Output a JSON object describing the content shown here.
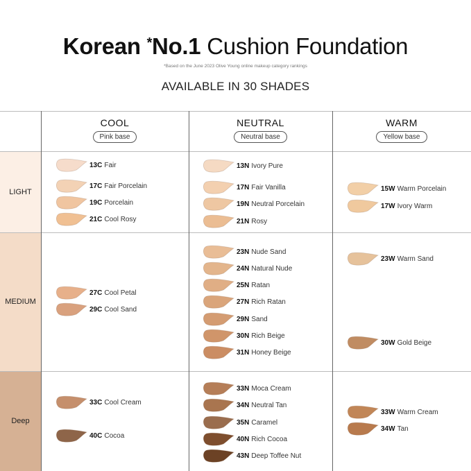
{
  "header": {
    "title_bold": "Korean",
    "title_star": "*",
    "title_no1": "No.1",
    "title_rest": "Cushion Foundation",
    "footnote": "*Based on the June 2023 Olive Young online makeup category rankings",
    "subtitle": "AVAILABLE IN 30 SHADES"
  },
  "columns": [
    {
      "name": "COOL",
      "base": "Pink base"
    },
    {
      "name": "NEUTRAL",
      "base": "Neutral base"
    },
    {
      "name": "WARM",
      "base": "Yellow base"
    }
  ],
  "rows": [
    {
      "name": "LIGHT",
      "bg": "#fcefe5"
    },
    {
      "name": "MEDIUM",
      "bg": "#f4dcc8"
    },
    {
      "name": "Deep",
      "bg": "#d6b194"
    }
  ],
  "shades": [
    {
      "code": "13C",
      "name": "Fair",
      "color": "#f6dccb",
      "col": 0,
      "row": 0
    },
    {
      "code": "17C",
      "name": "Fair Porcelain",
      "color": "#f3d2b5",
      "col": 0,
      "row": 0
    },
    {
      "code": "19C",
      "name": "Porcelain",
      "color": "#f0c5a0",
      "col": 0,
      "row": 0
    },
    {
      "code": "21C",
      "name": "Cool Rosy",
      "color": "#f0c093",
      "col": 0,
      "row": 0
    },
    {
      "code": "27C",
      "name": "Cool Petal",
      "color": "#e7b08a",
      "col": 0,
      "row": 1
    },
    {
      "code": "29C",
      "name": "Cool Sand",
      "color": "#d9a17e",
      "col": 0,
      "row": 1
    },
    {
      "code": "33C",
      "name": "Cool Cream",
      "color": "#c58f6c",
      "col": 0,
      "row": 2
    },
    {
      "code": "40C",
      "name": "Cocoa",
      "color": "#8e6549",
      "col": 0,
      "row": 2
    },
    {
      "code": "13N",
      "name": "Ivory Pure",
      "color": "#f5dac3",
      "col": 1,
      "row": 0
    },
    {
      "code": "17N",
      "name": "Fair Vanilla",
      "color": "#f3d0b0",
      "col": 1,
      "row": 0
    },
    {
      "code": "19N",
      "name": "Neutral Porcelain",
      "color": "#eec7a2",
      "col": 1,
      "row": 0
    },
    {
      "code": "21N",
      "name": "Rosy",
      "color": "#ebbd93",
      "col": 1,
      "row": 0
    },
    {
      "code": "23N",
      "name": "Nude Sand",
      "color": "#e9bd96",
      "col": 1,
      "row": 1
    },
    {
      "code": "24N",
      "name": "Natural Nude",
      "color": "#e3b58c",
      "col": 1,
      "row": 1
    },
    {
      "code": "25N",
      "name": "Ratan",
      "color": "#e0ae85",
      "col": 1,
      "row": 1
    },
    {
      "code": "27N",
      "name": "Rich Ratan",
      "color": "#daa57b",
      "col": 1,
      "row": 1
    },
    {
      "code": "29N",
      "name": "Sand",
      "color": "#d49c72",
      "col": 1,
      "row": 1
    },
    {
      "code": "30N",
      "name": "Rich Beige",
      "color": "#d0956a",
      "col": 1,
      "row": 1
    },
    {
      "code": "31N",
      "name": "Honey Beige",
      "color": "#cb8d63",
      "col": 1,
      "row": 1
    },
    {
      "code": "33N",
      "name": "Moca Cream",
      "color": "#b57e58",
      "col": 1,
      "row": 2
    },
    {
      "code": "34N",
      "name": "Neutral Tan",
      "color": "#a9754f",
      "col": 1,
      "row": 2
    },
    {
      "code": "35N",
      "name": "Caramel",
      "color": "#9a6d4e",
      "col": 1,
      "row": 2
    },
    {
      "code": "40N",
      "name": "Rich Cocoa",
      "color": "#7e4e2e",
      "col": 1,
      "row": 2
    },
    {
      "code": "43N",
      "name": "Deep Toffee Nut",
      "color": "#6c4225",
      "col": 1,
      "row": 2
    },
    {
      "code": "15W",
      "name": "Warm Porcelain",
      "color": "#f2cfa7",
      "col": 2,
      "row": 0
    },
    {
      "code": "17W",
      "name": "Ivory Warm",
      "color": "#f0c99e",
      "col": 2,
      "row": 0
    },
    {
      "code": "23W",
      "name": "Warm Sand",
      "color": "#e6c29b",
      "col": 2,
      "row": 1
    },
    {
      "code": "30W",
      "name": "Gold Beige",
      "color": "#c08c62",
      "col": 2,
      "row": 1
    },
    {
      "code": "33W",
      "name": "Warm Cream",
      "color": "#c18657",
      "col": 2,
      "row": 2
    },
    {
      "code": "34W",
      "name": "Tan",
      "color": "#b87a4d",
      "col": 2,
      "row": 2
    }
  ]
}
